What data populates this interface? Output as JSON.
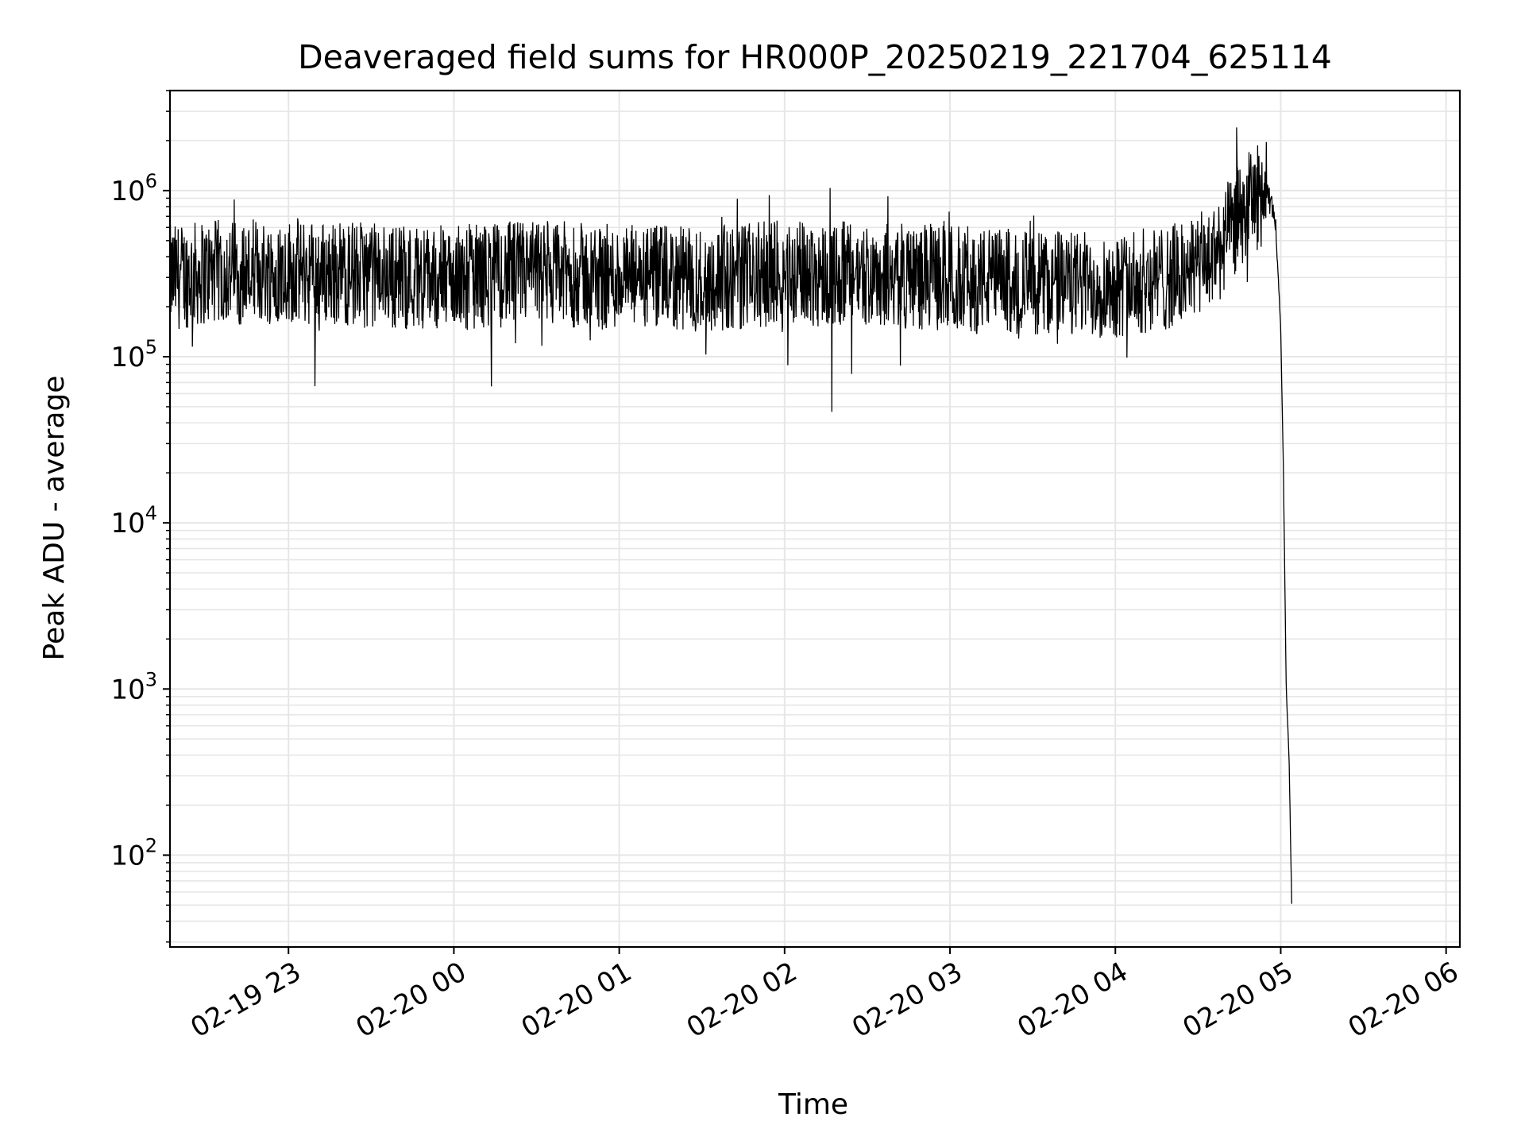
{
  "chart_data": {
    "type": "line",
    "title": "Deaveraged field sums for HR000P_20250219_221704_625114",
    "xlabel": "Time",
    "ylabel": "Peak ADU - average",
    "yscale": "log",
    "ylim": [
      28,
      4000000
    ],
    "xlim": [
      "2025-02-19 22:17",
      "2025-02-20 06:05"
    ],
    "grid": true,
    "line_color": "#000000",
    "grid_color": "#e6e6e6",
    "x_ticks": [
      {
        "value": "2025-02-19 23:00",
        "label": "02-19 23"
      },
      {
        "value": "2025-02-20 00:00",
        "label": "02-20 00"
      },
      {
        "value": "2025-02-20 01:00",
        "label": "02-20 01"
      },
      {
        "value": "2025-02-20 02:00",
        "label": "02-20 02"
      },
      {
        "value": "2025-02-20 03:00",
        "label": "02-20 03"
      },
      {
        "value": "2025-02-20 04:00",
        "label": "02-20 04"
      },
      {
        "value": "2025-02-20 05:00",
        "label": "02-20 05"
      },
      {
        "value": "2025-02-20 06:00",
        "label": "02-20 06"
      }
    ],
    "y_ticks": [
      {
        "value": 100,
        "base": "10",
        "exp": "2"
      },
      {
        "value": 1000,
        "base": "10",
        "exp": "3"
      },
      {
        "value": 10000,
        "base": "10",
        "exp": "4"
      },
      {
        "value": 100000,
        "base": "10",
        "exp": "5"
      },
      {
        "value": 1000000,
        "base": "10",
        "exp": "6"
      }
    ],
    "series": [
      {
        "x": [
          "2025-02-19 22:17",
          "2025-02-19 22:30",
          "2025-02-19 23:00",
          "2025-02-19 23:30",
          "2025-02-20 00:00",
          "2025-02-20 00:30",
          "2025-02-20 01:00",
          "2025-02-20 01:30",
          "2025-02-20 02:00",
          "2025-02-20 02:30",
          "2025-02-20 03:00",
          "2025-02-20 03:30",
          "2025-02-20 04:00",
          "2025-02-20 04:20",
          "2025-02-20 04:35",
          "2025-02-20 04:45",
          "2025-02-20 04:50",
          "2025-02-20 04:55",
          "2025-02-20 04:58",
          "2025-02-20 05:00",
          "2025-02-20 05:01",
          "2025-02-20 05:02",
          "2025-02-20 05:03",
          "2025-02-20 05:04"
        ],
        "y": [
          300000,
          320000,
          330000,
          310000,
          300000,
          320000,
          300000,
          290000,
          320000,
          310000,
          300000,
          280000,
          270000,
          300000,
          380000,
          700000,
          900000,
          950000,
          700000,
          150000,
          20000,
          1000,
          400,
          50
        ]
      }
    ],
    "annotations": [
      {
        "x": "2025-02-20 04:44",
        "y": 2400000,
        "label": ""
      }
    ]
  }
}
